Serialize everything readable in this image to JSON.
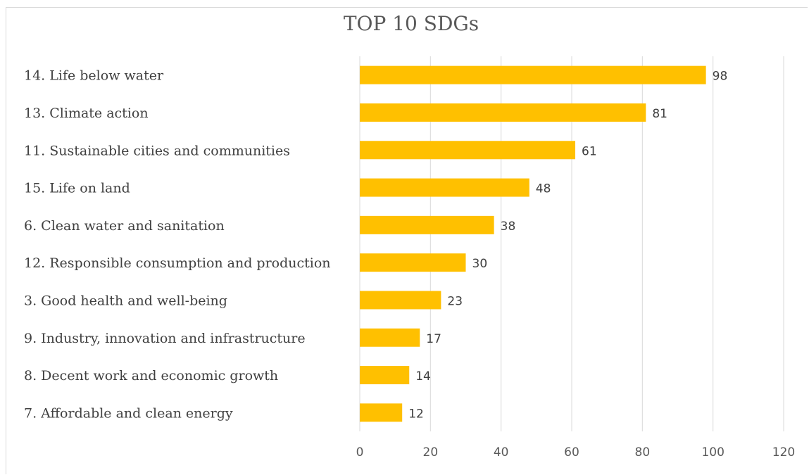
{
  "chart_data": {
    "type": "bar",
    "orientation": "horizontal",
    "title": "TOP 10 SDGs",
    "categories": [
      "14. Life below water",
      "13. Climate action",
      "11. Sustainable cities and communities",
      "15. Life on land",
      "6. Clean water and sanitation",
      "12. Responsible consumption and production",
      "3. Good health and well-being",
      "9. Industry, innovation and infrastructure",
      "8. Decent work and economic growth",
      "7. Affordable and clean energy"
    ],
    "values": [
      98,
      81,
      61,
      48,
      38,
      30,
      23,
      17,
      14,
      12
    ],
    "xlim": [
      0,
      120
    ],
    "x_ticks": [
      "0",
      "20",
      "40",
      "60",
      "80",
      "100",
      "120"
    ],
    "x_tick_values": [
      0,
      20,
      40,
      60,
      80,
      100,
      120
    ],
    "bar_color": "#FFC000",
    "grid": "vertical",
    "legend": "none",
    "data_labels": true
  }
}
